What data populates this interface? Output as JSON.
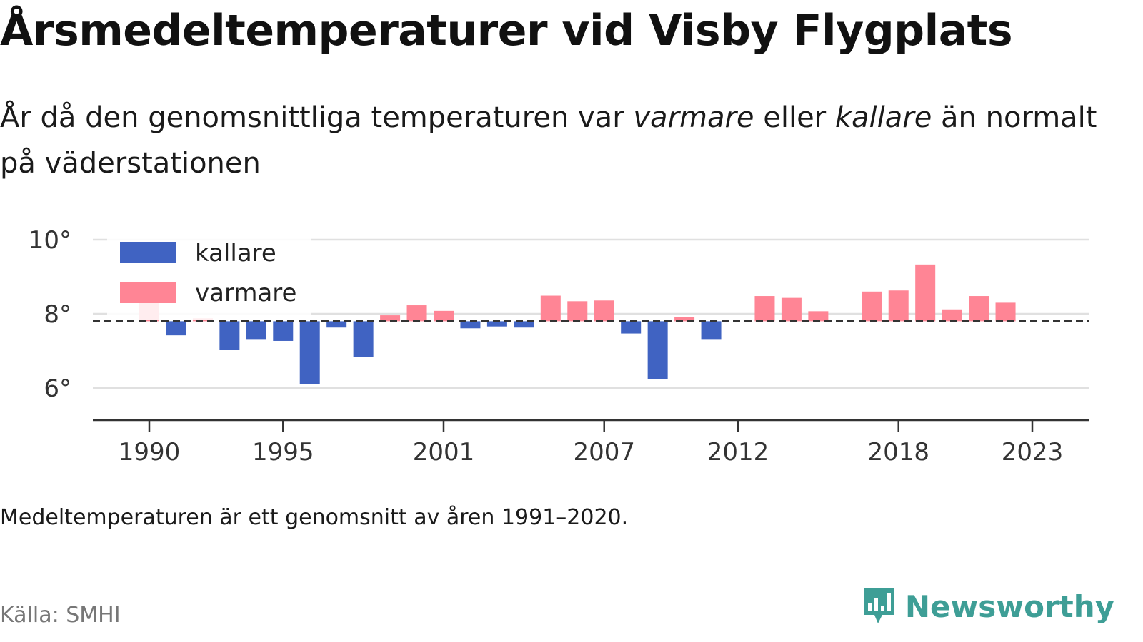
{
  "title": "Årsmedeltemperaturer vid Visby Flygplats",
  "subtitle": {
    "part1": "År då den genomsnittliga temperaturen var ",
    "warm_word": "varmare",
    "part2": " eller ",
    "cold_word": "kallare",
    "part3": " än normalt på väderstationen"
  },
  "note": "Medeltemperaturen är ett genomsnitt av åren 1991–2020.",
  "source": "Källa: SMHI",
  "brand": {
    "name": "Newsworthy",
    "icon": "newsworthy-logo-icon",
    "color": "#3e9e96"
  },
  "chart_data": {
    "type": "bar",
    "baseline": 7.8,
    "ylim": [
      5.2,
      10.2
    ],
    "yticks": [
      {
        "value": 6,
        "label": "6°"
      },
      {
        "value": 8,
        "label": "8°"
      },
      {
        "value": 10,
        "label": "10°"
      }
    ],
    "xticks": [
      1990,
      1995,
      2001,
      2007,
      2012,
      2018,
      2023
    ],
    "xlim": [
      1987.9,
      2025.2
    ],
    "legend": {
      "placement": "top-left",
      "items": [
        {
          "key": "cold",
          "label": "kallare",
          "color": "#4063c2"
        },
        {
          "key": "warm",
          "label": "varmare",
          "color": "#ff8595"
        }
      ]
    },
    "colors": {
      "cold": "#4063c2",
      "warm": "#ff8595"
    },
    "grid": true,
    "years": [
      1990,
      1991,
      1992,
      1993,
      1994,
      1995,
      1996,
      1997,
      1998,
      1999,
      2000,
      2001,
      2002,
      2003,
      2004,
      2005,
      2006,
      2007,
      2008,
      2009,
      2010,
      2011,
      2012,
      2013,
      2014,
      2015,
      2016,
      2017,
      2018,
      2019,
      2020,
      2021,
      2022,
      2023
    ],
    "values": [
      8.55,
      7.42,
      7.88,
      7.03,
      7.32,
      7.27,
      6.1,
      7.63,
      6.83,
      7.96,
      8.23,
      8.08,
      7.61,
      7.66,
      7.63,
      8.49,
      8.34,
      8.36,
      7.47,
      6.25,
      7.92,
      7.32,
      7.8,
      8.48,
      8.43,
      8.07,
      7.8,
      8.6,
      8.63,
      9.33,
      8.12,
      8.48,
      8.3,
      7.8
    ]
  }
}
